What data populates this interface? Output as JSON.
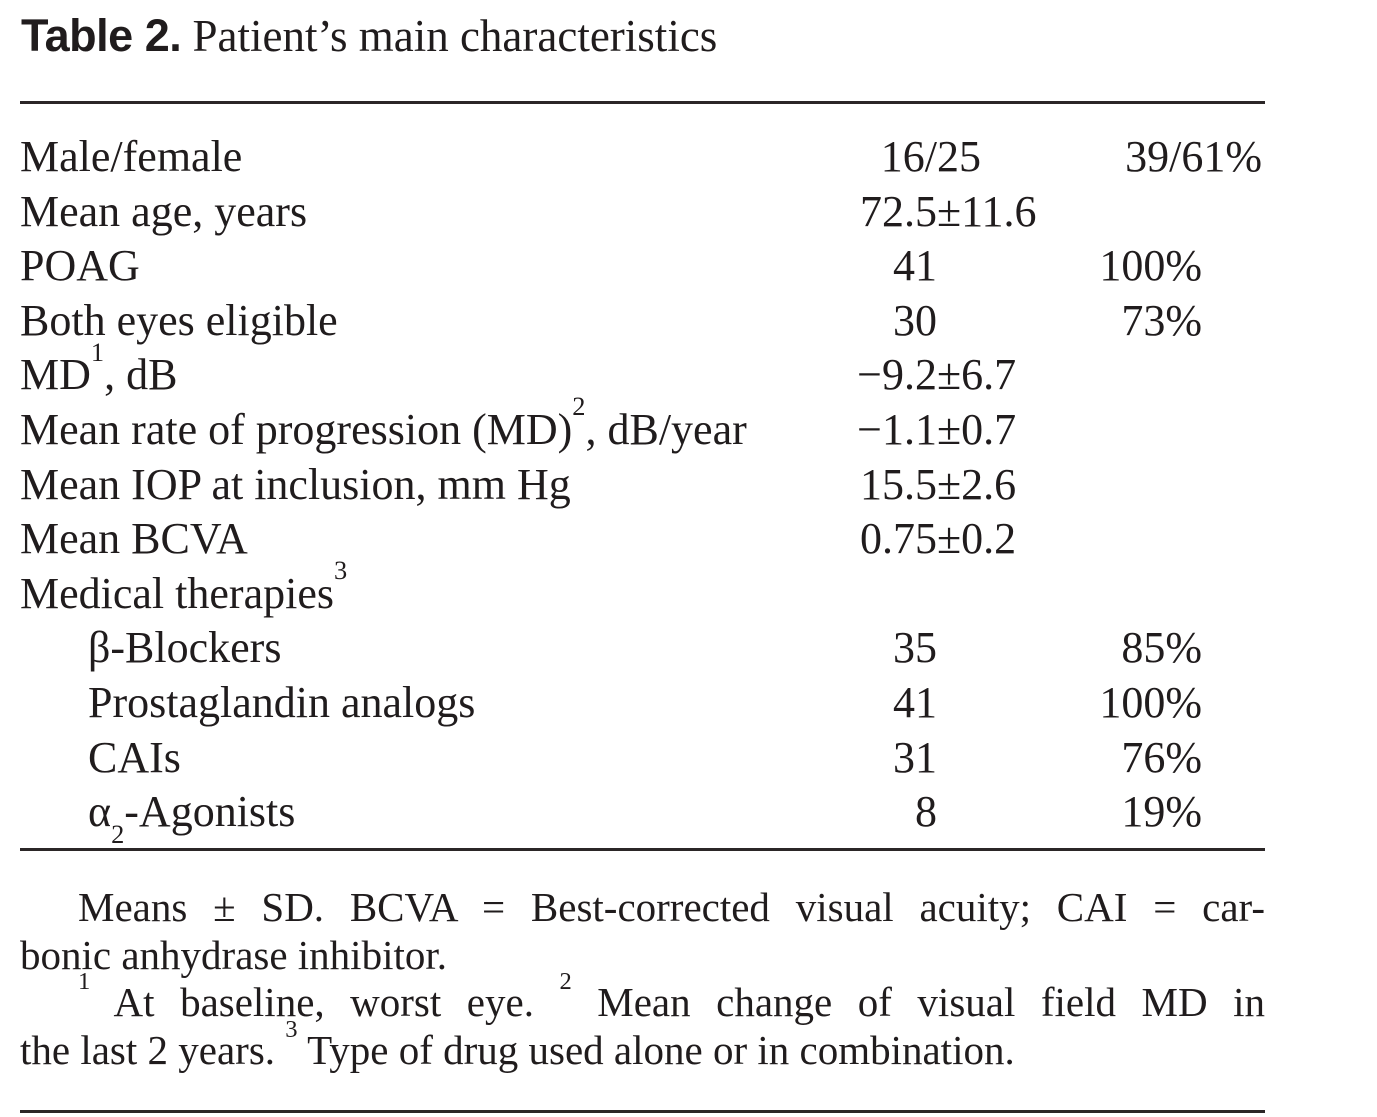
{
  "title": {
    "label": "Table 2.",
    "text": "Patient’s main characteristics"
  },
  "colors": {
    "background": "#ffffff",
    "text": "#201c1d",
    "rule": "#2b2627"
  },
  "table": {
    "rows": [
      {
        "pre": "Male/female",
        "sup": "",
        "sub": "",
        "mid": "",
        "val_pre": "16/",
        "val_post": "25",
        "pct": "39/61%"
      },
      {
        "pre": "Mean age, years",
        "sup": "",
        "sub": "",
        "mid": "",
        "val_pre": "72.5",
        "val_post": "±11.6",
        "pct": ""
      },
      {
        "pre": "POAG",
        "sup": "",
        "sub": "",
        "mid": "",
        "val_pre": "41",
        "val_post": "",
        "pct": "100%"
      },
      {
        "pre": "Both eyes eligible",
        "sup": "",
        "sub": "",
        "mid": "",
        "val_pre": "30",
        "val_post": "",
        "pct": "73%"
      },
      {
        "pre": "MD",
        "sup": "1",
        "sub": "",
        "mid": ", dB",
        "val_pre": "−9.2",
        "val_post": "±6.7",
        "pct": ""
      },
      {
        "pre": "Mean rate of progression (MD)",
        "sup": "2",
        "sub": "",
        "mid": ", dB/year",
        "val_pre": "−1.1",
        "val_post": "±0.7",
        "pct": ""
      },
      {
        "pre": "Mean IOP at inclusion, mm Hg",
        "sup": "",
        "sub": "",
        "mid": "",
        "val_pre": "15.5",
        "val_post": "±2.6",
        "pct": ""
      },
      {
        "pre": "Mean BCVA",
        "sup": "",
        "sub": "",
        "mid": "",
        "val_pre": "0.75",
        "val_post": "±0.2",
        "pct": ""
      },
      {
        "pre": "Medical therapies",
        "sup": "3",
        "sub": "",
        "mid": "",
        "val_pre": "",
        "val_post": "",
        "pct": ""
      },
      {
        "pre": "β-Blockers",
        "sup": "",
        "sub": "",
        "mid": "",
        "val_pre": "35",
        "val_post": "",
        "pct": "85%"
      },
      {
        "pre": "Prostaglandin analogs",
        "sup": "",
        "sub": "",
        "mid": "",
        "val_pre": "41",
        "val_post": "",
        "pct": "100%"
      },
      {
        "pre": "CAIs",
        "sup": "",
        "sub": "",
        "mid": "",
        "val_pre": "31",
        "val_post": "",
        "pct": "76%"
      },
      {
        "pre": "α",
        "sup": "",
        "sub": "2",
        "mid": "-Agonists",
        "val_pre": "8",
        "val_post": "",
        "pct": "19%"
      }
    ]
  },
  "footnotes": {
    "line1": "Means ± SD. BCVA = Best-corrected visual acuity; CAI = car-",
    "line2": "bonic anhydrase inhibitor.",
    "line3_sup1": "1",
    "line3_t1": " At baseline, worst eye. ",
    "line3_sup2": "2",
    "line3_t2": " Mean change of visual field MD in",
    "line4_t1": "the last 2 years. ",
    "line4_sup": "3",
    "line4_t2": " Type of drug used alone or in combination."
  }
}
